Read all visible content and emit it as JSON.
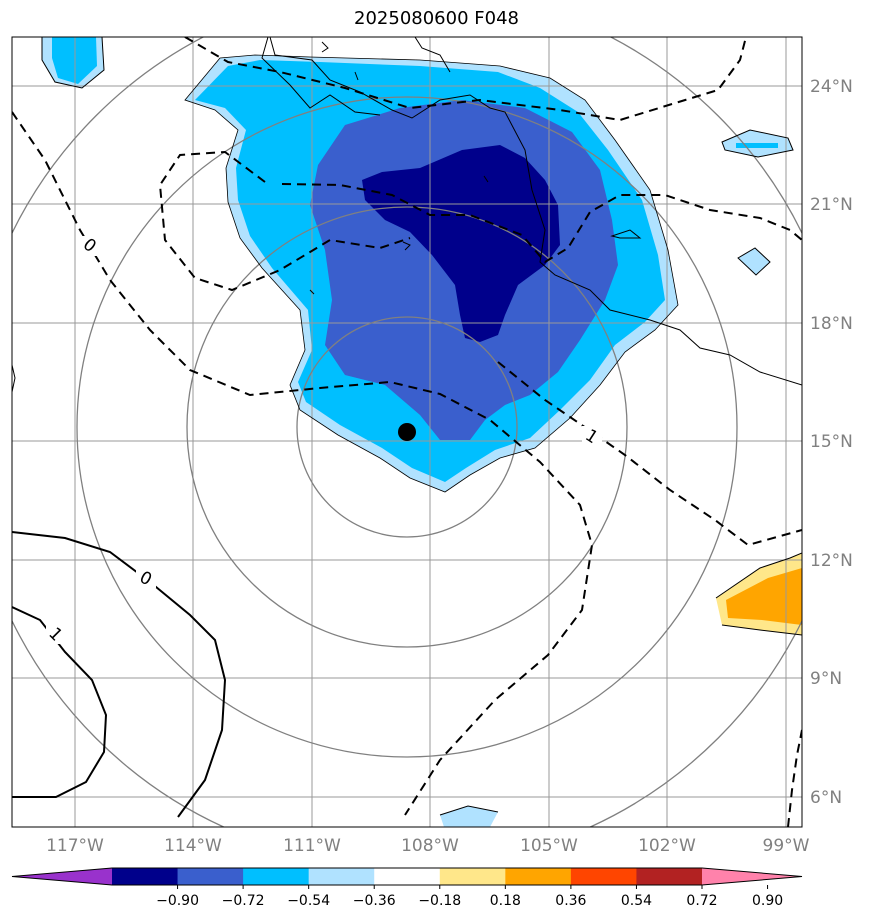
{
  "title": "2025080600 F048",
  "lat_labels": [
    "24°N",
    "21°N",
    "18°N",
    "15°N",
    "12°N",
    "9°N",
    "6°N"
  ],
  "lon_labels": [
    "117°W",
    "114°W",
    "111°W",
    "108°W",
    "105°W",
    "102°W",
    "99°W"
  ],
  "colorbar": {
    "labels": [
      "−0.90",
      "−0.72",
      "−0.54",
      "−0.36",
      "−0.18",
      "0.18",
      "0.36",
      "0.54",
      "0.72",
      "0.90"
    ],
    "colors": [
      "#9932cc",
      "#00008b",
      "#3a5fcd",
      "#00bfff",
      "#b0e2ff",
      "#ffffff",
      "#ffe78a",
      "#ffa500",
      "#ff4500",
      "#b22222",
      "#ff82ab"
    ]
  },
  "contour_labels": {
    "zero_left": "0",
    "zero_bottom": "0",
    "one_left": "1",
    "one_right": "1"
  },
  "storm_center": {
    "lat": 15.2,
    "lon": "108.2°W"
  }
}
